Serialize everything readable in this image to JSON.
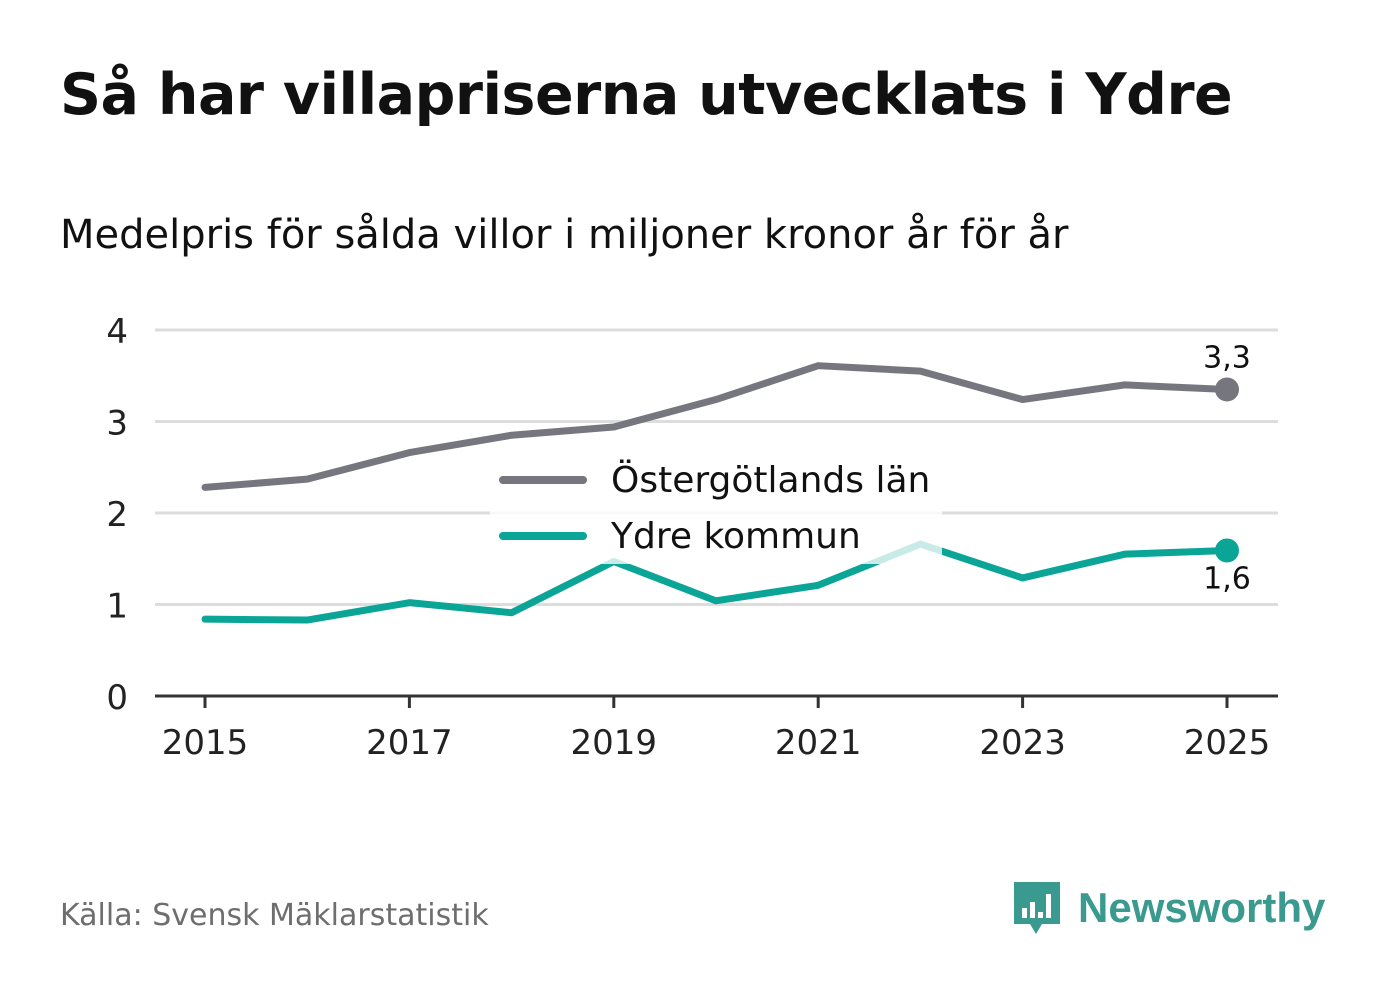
{
  "header": {
    "title": "Så har villapriserna utvecklats i Ydre",
    "subtitle": "Medelpris för sålda villor i miljoner kronor år för år"
  },
  "footer": {
    "source": "Källa: Svensk Mäklarstatistik",
    "brand": "Newsworthy",
    "brand_icon": "bar-chart-speech-bubble-icon"
  },
  "colors": {
    "lan": "#76767e",
    "kommun": "#0aa597",
    "grid": "#dddddd",
    "axis": "#333333",
    "brand": "#3a9a8f"
  },
  "chart_data": {
    "type": "line",
    "title": "Så har villapriserna utvecklats i Ydre",
    "subtitle": "Medelpris för sålda villor i miljoner kronor år för år",
    "xlabel": "",
    "ylabel": "",
    "x": [
      2015,
      2016,
      2017,
      2018,
      2019,
      2020,
      2021,
      2022,
      2023,
      2024,
      2025
    ],
    "xticks": [
      "2015",
      "2017",
      "2019",
      "2021",
      "2023",
      "2025"
    ],
    "yticks": [
      "0",
      "1",
      "2",
      "3",
      "4"
    ],
    "ylim": [
      0,
      4
    ],
    "grid": true,
    "legend_position": "center",
    "series": [
      {
        "name": "Östergötlands län",
        "values": [
          2.28,
          2.37,
          2.66,
          2.85,
          2.94,
          3.24,
          3.61,
          3.55,
          3.24,
          3.4,
          3.35
        ],
        "end_label": "3,3"
      },
      {
        "name": "Ydre kommun",
        "values": [
          0.84,
          0.83,
          1.02,
          0.91,
          1.47,
          1.04,
          1.21,
          1.66,
          1.29,
          1.55,
          1.59
        ],
        "end_label": "1,6"
      }
    ]
  }
}
